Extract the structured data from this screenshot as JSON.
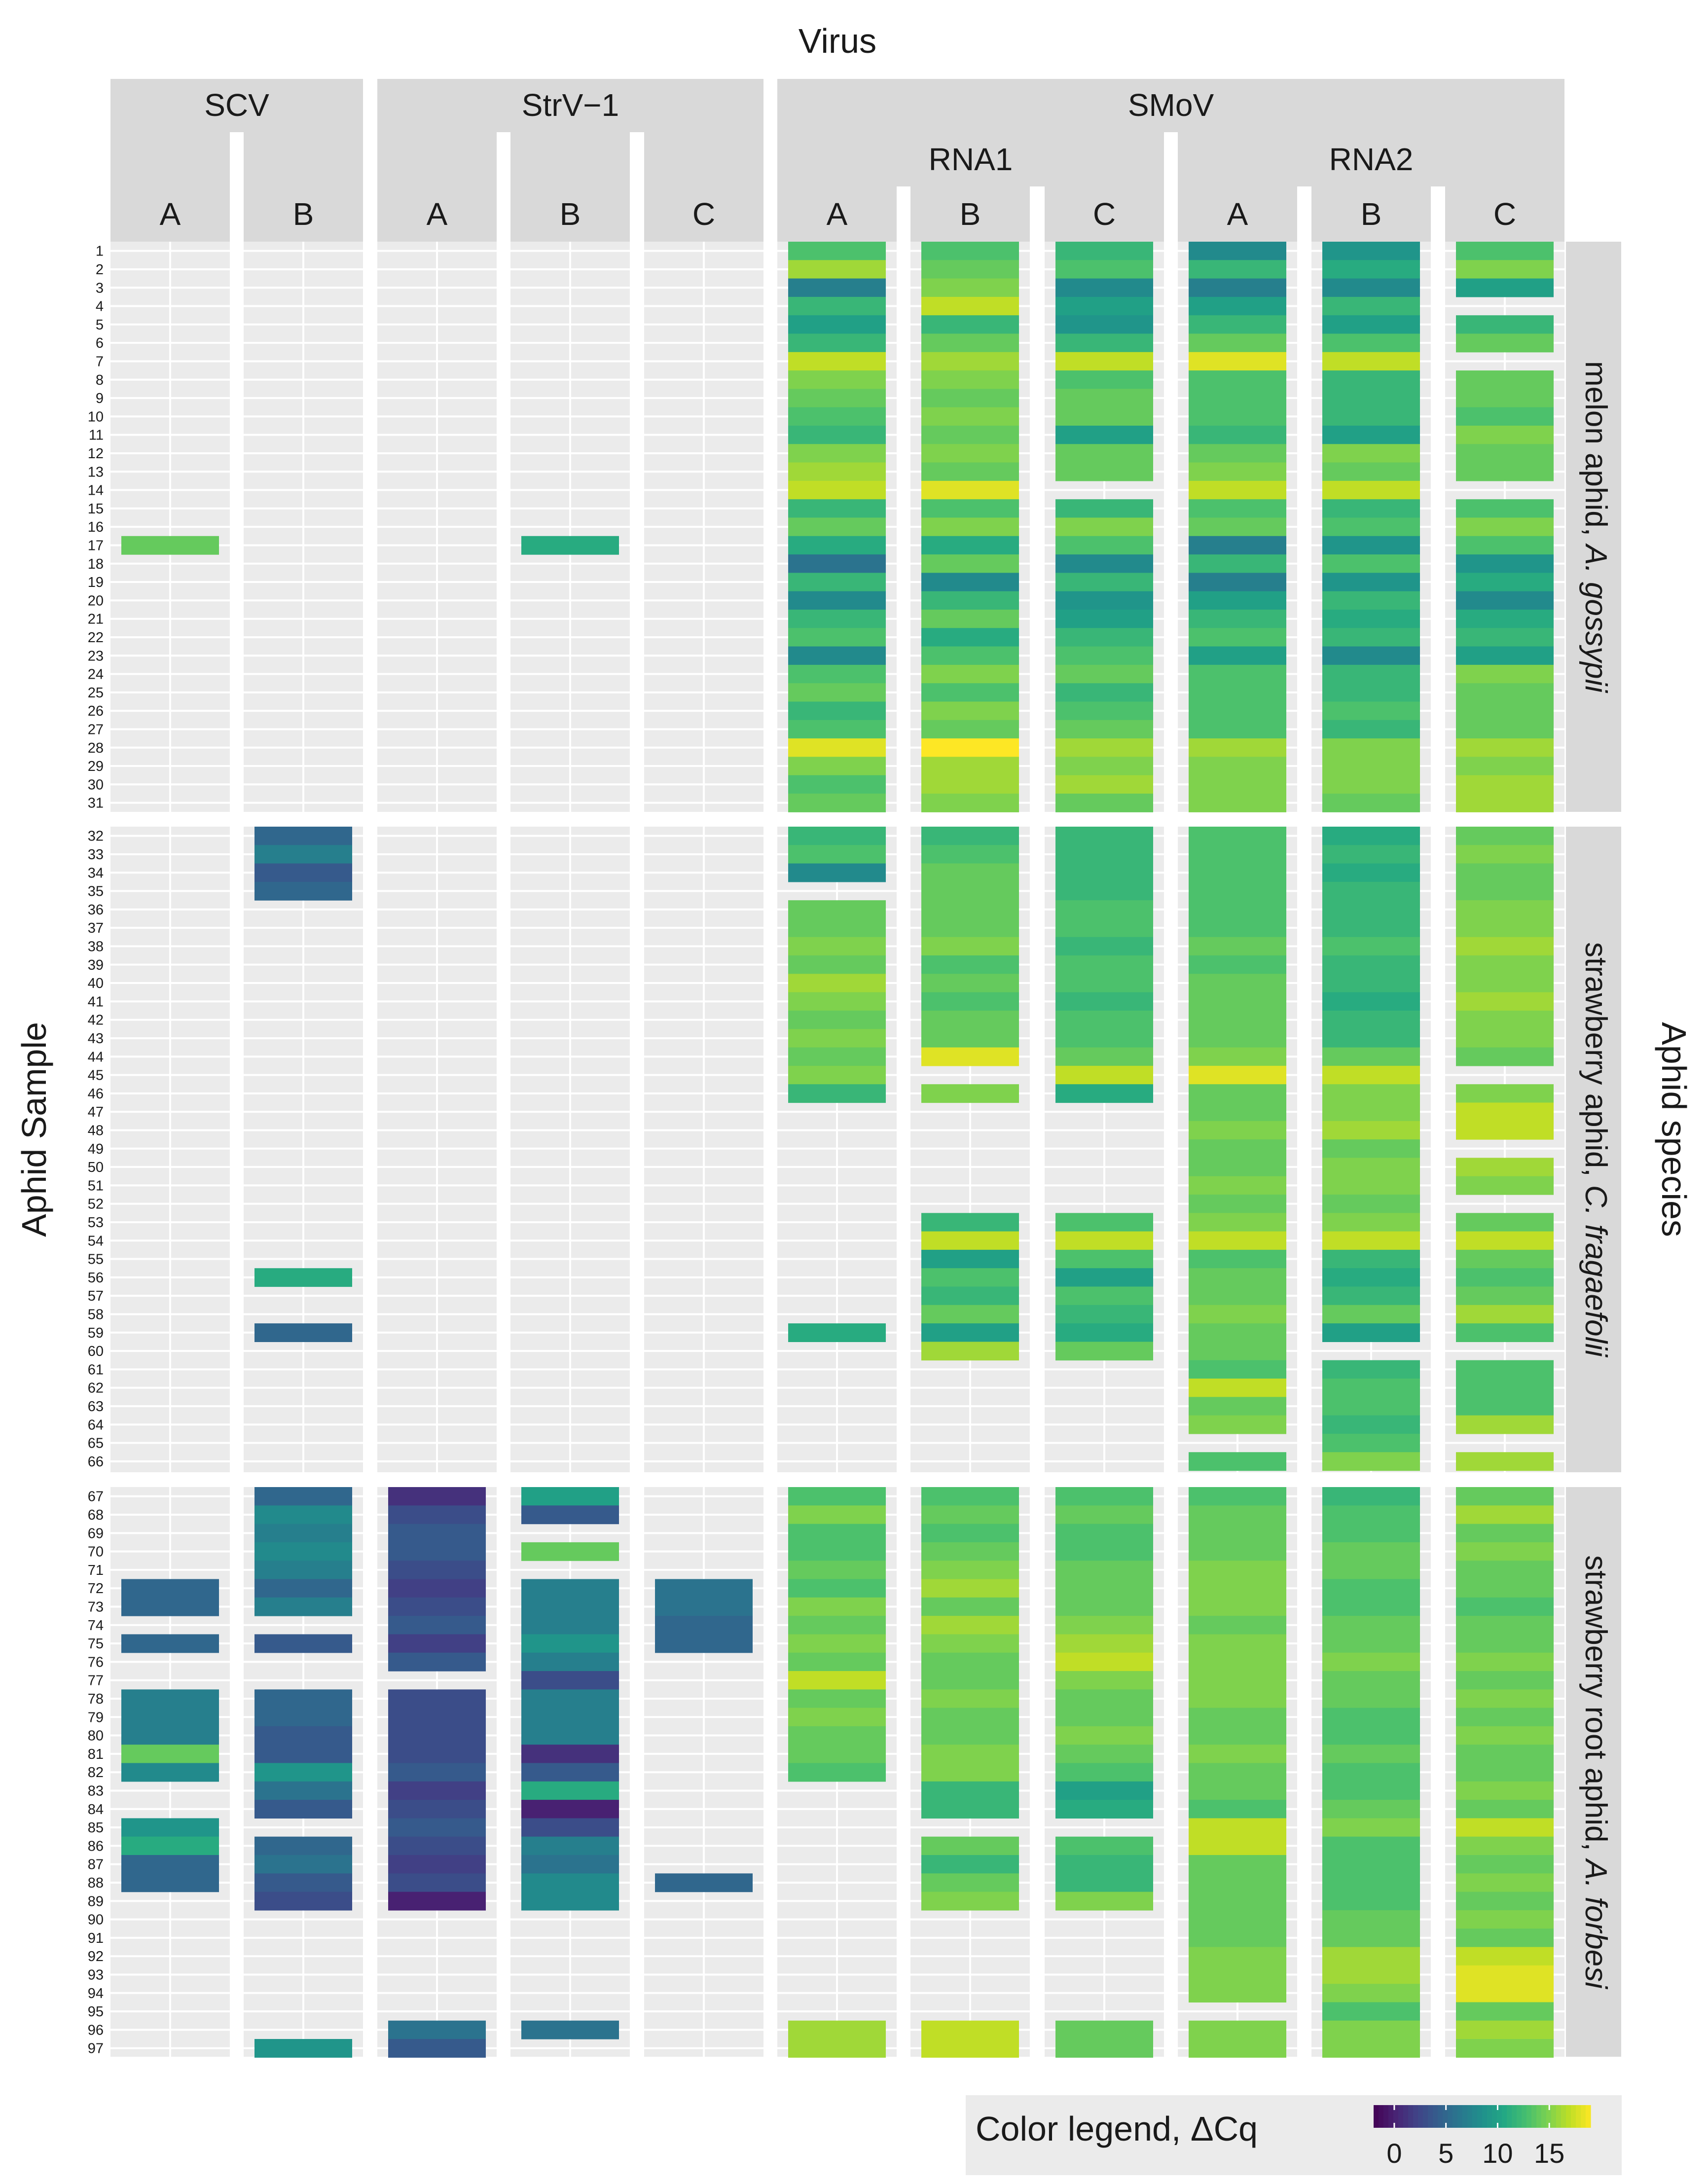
{
  "chart_data": {
    "type": "heatmap",
    "title": "Virus",
    "xlabel": "Virus",
    "ylabel": "Aphid Sample",
    "facet_label": "Aphid species",
    "legend": {
      "title": "Color legend, ΔCq",
      "ticks": [
        0,
        5,
        10,
        15
      ],
      "range": [
        -2,
        19
      ],
      "placement": "bottom-right"
    },
    "virus_groups": [
      {
        "label": "SCV",
        "columns": [
          "A",
          "B"
        ]
      },
      {
        "label": "StrV−1",
        "columns": [
          "A",
          "B",
          "C"
        ]
      },
      {
        "label": "SMoV",
        "subgroups": [
          {
            "label": "RNA1",
            "columns": [
              "A",
              "B",
              "C"
            ]
          },
          {
            "label": "RNA2",
            "columns": [
              "A",
              "B",
              "C"
            ]
          }
        ]
      }
    ],
    "columns": [
      "SCV A",
      "SCV B",
      "StrV−1 A",
      "StrV−1 B",
      "StrV−1 C",
      "SMoV RNA1 A",
      "SMoV RNA1 B",
      "SMoV RNA1 C",
      "SMoV RNA2 A",
      "SMoV RNA2 B",
      "SMoV RNA2 C"
    ],
    "species_panels": [
      {
        "label_prefix": "melon aphid, ",
        "label_italic": "A. gossypii",
        "samples": [
          1,
          31
        ]
      },
      {
        "label_prefix": "strawberry aphid, ",
        "label_italic": "C. fragaefolii",
        "samples": [
          32,
          66
        ]
      },
      {
        "label_prefix": "strawberry root aphid, ",
        "label_italic": "A. forbesi",
        "samples": [
          67,
          97
        ]
      }
    ],
    "delta_cq": {
      "SCV A": {
        "17": 14,
        "72": 5,
        "73": 5,
        "75": 5,
        "78": 7,
        "79": 7,
        "80": 7,
        "81": 14,
        "82": 8,
        "85": 9,
        "86": 11,
        "87": 5,
        "88": 5
      },
      "SCV B": {
        "32": 5,
        "33": 7,
        "34": 4,
        "35": 5,
        "56": 11,
        "59": 5,
        "67": 5,
        "68": 8,
        "69": 7,
        "70": 8,
        "71": 7,
        "72": 5,
        "73": 7,
        "75": 4,
        "78": 5,
        "79": 5,
        "80": 4,
        "81": 4,
        "82": 9,
        "83": 6,
        "84": 4,
        "86": 5,
        "87": 6,
        "88": 4,
        "89": 3,
        "97": 9
      },
      "StrV−1 A": {
        "67": 1,
        "68": 3,
        "69": 4,
        "70": 4,
        "71": 3,
        "72": 2,
        "73": 3,
        "74": 4,
        "75": 2,
        "76": 4,
        "78": 3,
        "79": 3,
        "80": 3,
        "81": 3,
        "82": 4,
        "83": 2,
        "84": 3,
        "85": 4,
        "86": 3,
        "87": 2,
        "88": 3,
        "89": 0,
        "96": 6,
        "97": 4
      },
      "StrV−1 B": {
        "17": 11,
        "67": 10,
        "68": 4,
        "70": 14,
        "72": 7,
        "73": 7,
        "74": 7,
        "75": 9,
        "76": 7,
        "77": 3,
        "78": 7,
        "79": 7,
        "80": 7,
        "81": 1,
        "82": 4,
        "83": 11,
        "84": 0,
        "85": 3,
        "86": 7,
        "87": 6,
        "88": 8,
        "89": 8,
        "96": 6
      },
      "StrV−1 C": {
        "72": 6,
        "73": 6,
        "74": 5,
        "75": 5,
        "88": 5
      },
      "SMoV RNA1 A": {
        "1": 13,
        "2": 16,
        "3": 7,
        "4": 12,
        "5": 10,
        "6": 12,
        "7": 17,
        "8": 15,
        "9": 14,
        "10": 13,
        "11": 12,
        "12": 15,
        "13": 16,
        "14": 17,
        "15": 12,
        "16": 14,
        "17": 11,
        "18": 6,
        "19": 12,
        "20": 8,
        "21": 12,
        "22": 13,
        "23": 8,
        "24": 13,
        "25": 14,
        "26": 12,
        "27": 13,
        "28": 18,
        "29": 15,
        "30": 13,
        "31": 14,
        "32": 12,
        "33": 13,
        "34": 8,
        "36": 14,
        "37": 14,
        "38": 15,
        "39": 14,
        "40": 16,
        "41": 15,
        "42": 14,
        "43": 15,
        "44": 14,
        "45": 15,
        "46": 12,
        "59": 11,
        "67": 13,
        "68": 15,
        "69": 13,
        "70": 13,
        "71": 14,
        "72": 13,
        "73": 15,
        "74": 14,
        "75": 15,
        "76": 14,
        "77": 17,
        "78": 14,
        "79": 15,
        "80": 14,
        "81": 14,
        "82": 13,
        "96": 16,
        "97": 16
      },
      "SMoV RNA1 B": {
        "1": 13,
        "2": 14,
        "3": 15,
        "4": 17,
        "5": 12,
        "6": 14,
        "7": 16,
        "8": 15,
        "9": 14,
        "10": 15,
        "11": 14,
        "12": 15,
        "13": 14,
        "14": 18,
        "15": 13,
        "16": 15,
        "17": 11,
        "18": 14,
        "19": 8,
        "20": 12,
        "21": 14,
        "22": 11,
        "23": 13,
        "24": 15,
        "25": 13,
        "26": 15,
        "27": 14,
        "28": 19,
        "29": 16,
        "30": 16,
        "31": 15,
        "32": 12,
        "33": 13,
        "34": 14,
        "35": 14,
        "36": 14,
        "37": 14,
        "38": 15,
        "39": 13,
        "40": 14,
        "41": 13,
        "42": 14,
        "43": 14,
        "44": 18,
        "46": 15,
        "53": 12,
        "54": 17,
        "55": 10,
        "56": 13,
        "57": 12,
        "58": 14,
        "59": 10,
        "60": 16,
        "67": 13,
        "68": 14,
        "69": 13,
        "70": 14,
        "71": 15,
        "72": 16,
        "73": 14,
        "74": 16,
        "75": 15,
        "76": 14,
        "77": 14,
        "78": 15,
        "79": 14,
        "80": 14,
        "81": 15,
        "82": 15,
        "83": 12,
        "84": 12,
        "86": 14,
        "87": 12,
        "88": 14,
        "89": 15,
        "96": 17,
        "97": 17
      },
      "SMoV RNA1 C": {
        "1": 12,
        "2": 13,
        "3": 8,
        "4": 10,
        "5": 9,
        "6": 12,
        "7": 17,
        "8": 13,
        "9": 14,
        "10": 14,
        "11": 10,
        "12": 14,
        "13": 14,
        "15": 12,
        "16": 15,
        "17": 13,
        "18": 8,
        "19": 12,
        "20": 9,
        "21": 10,
        "22": 12,
        "23": 13,
        "24": 14,
        "25": 12,
        "26": 13,
        "27": 14,
        "28": 16,
        "29": 15,
        "30": 16,
        "31": 14,
        "32": 12,
        "33": 12,
        "34": 12,
        "35": 12,
        "36": 13,
        "37": 13,
        "38": 12,
        "39": 13,
        "40": 13,
        "41": 12,
        "42": 13,
        "43": 13,
        "44": 14,
        "45": 17,
        "46": 11,
        "53": 13,
        "54": 17,
        "55": 13,
        "56": 10,
        "57": 13,
        "58": 12,
        "59": 11,
        "60": 14,
        "67": 13,
        "68": 14,
        "69": 13,
        "70": 13,
        "71": 14,
        "72": 14,
        "73": 14,
        "74": 15,
        "75": 16,
        "76": 17,
        "77": 15,
        "78": 14,
        "79": 14,
        "80": 15,
        "81": 14,
        "82": 13,
        "83": 10,
        "84": 11,
        "86": 13,
        "87": 12,
        "88": 12,
        "89": 15,
        "96": 14,
        "97": 14
      },
      "SMoV RNA2 A": {
        "1": 8,
        "2": 12,
        "3": 7,
        "4": 10,
        "5": 12,
        "6": 14,
        "7": 18,
        "8": 13,
        "9": 13,
        "10": 13,
        "11": 12,
        "12": 14,
        "13": 15,
        "14": 17,
        "15": 13,
        "16": 14,
        "17": 7,
        "18": 12,
        "19": 7,
        "20": 10,
        "21": 12,
        "22": 13,
        "23": 10,
        "24": 13,
        "25": 13,
        "26": 13,
        "27": 13,
        "28": 16,
        "29": 15,
        "30": 15,
        "31": 15,
        "32": 13,
        "33": 13,
        "34": 13,
        "35": 13,
        "36": 13,
        "37": 13,
        "38": 14,
        "39": 13,
        "40": 14,
        "41": 14,
        "42": 14,
        "43": 14,
        "44": 15,
        "45": 18,
        "46": 14,
        "47": 14,
        "48": 15,
        "49": 14,
        "50": 14,
        "51": 15,
        "52": 14,
        "53": 15,
        "54": 17,
        "55": 13,
        "56": 14,
        "57": 14,
        "58": 15,
        "59": 14,
        "60": 14,
        "61": 13,
        "62": 17,
        "63": 14,
        "64": 15,
        "66": 13,
        "67": 13,
        "68": 14,
        "69": 14,
        "70": 14,
        "71": 15,
        "72": 15,
        "73": 15,
        "74": 14,
        "75": 15,
        "76": 15,
        "77": 15,
        "78": 15,
        "79": 14,
        "80": 14,
        "81": 15,
        "82": 14,
        "83": 14,
        "84": 13,
        "85": 17,
        "86": 17,
        "87": 14,
        "88": 14,
        "89": 14,
        "90": 14,
        "91": 14,
        "92": 15,
        "93": 15,
        "94": 15,
        "96": 15,
        "97": 15
      },
      "SMoV RNA2 B": {
        "1": 9,
        "2": 11,
        "3": 8,
        "4": 12,
        "5": 10,
        "6": 13,
        "7": 17,
        "8": 12,
        "9": 12,
        "10": 12,
        "11": 10,
        "12": 15,
        "13": 14,
        "14": 17,
        "15": 12,
        "16": 13,
        "17": 9,
        "18": 13,
        "19": 9,
        "20": 12,
        "21": 11,
        "22": 12,
        "23": 8,
        "24": 12,
        "25": 12,
        "26": 13,
        "27": 12,
        "28": 15,
        "29": 15,
        "30": 15,
        "31": 14,
        "32": 11,
        "33": 12,
        "34": 11,
        "35": 12,
        "36": 12,
        "37": 12,
        "38": 13,
        "39": 12,
        "40": 12,
        "41": 11,
        "42": 12,
        "43": 12,
        "44": 14,
        "45": 17,
        "46": 15,
        "47": 15,
        "48": 16,
        "49": 14,
        "50": 15,
        "51": 15,
        "52": 14,
        "53": 15,
        "54": 17,
        "55": 12,
        "56": 11,
        "57": 12,
        "58": 14,
        "59": 10,
        "61": 12,
        "62": 13,
        "63": 13,
        "64": 12,
        "65": 13,
        "66": 15,
        "67": 12,
        "68": 13,
        "69": 13,
        "70": 14,
        "71": 14,
        "72": 13,
        "73": 13,
        "74": 14,
        "75": 14,
        "76": 15,
        "77": 14,
        "78": 14,
        "79": 13,
        "80": 13,
        "81": 14,
        "82": 13,
        "83": 13,
        "84": 14,
        "85": 15,
        "86": 13,
        "87": 13,
        "88": 13,
        "89": 13,
        "90": 14,
        "91": 14,
        "92": 16,
        "93": 16,
        "94": 15,
        "95": 13,
        "96": 15,
        "97": 15
      },
      "SMoV RNA2 C": {
        "1": 13,
        "2": 15,
        "3": 10,
        "5": 12,
        "6": 14,
        "8": 14,
        "9": 14,
        "10": 13,
        "11": 15,
        "12": 14,
        "13": 14,
        "15": 13,
        "16": 15,
        "17": 13,
        "18": 9,
        "19": 11,
        "20": 8,
        "21": 11,
        "22": 12,
        "23": 10,
        "24": 15,
        "25": 14,
        "26": 14,
        "27": 14,
        "28": 16,
        "29": 15,
        "30": 16,
        "31": 16,
        "32": 14,
        "33": 15,
        "34": 14,
        "35": 14,
        "36": 15,
        "37": 15,
        "38": 16,
        "39": 15,
        "40": 15,
        "41": 16,
        "42": 15,
        "43": 15,
        "44": 14,
        "46": 15,
        "47": 17,
        "48": 17,
        "50": 16,
        "51": 15,
        "53": 14,
        "54": 17,
        "55": 14,
        "56": 13,
        "57": 14,
        "58": 16,
        "59": 13,
        "61": 13,
        "62": 13,
        "63": 13,
        "64": 16,
        "66": 16,
        "67": 14,
        "68": 16,
        "69": 14,
        "70": 15,
        "71": 14,
        "72": 14,
        "73": 13,
        "74": 14,
        "75": 14,
        "76": 15,
        "77": 14,
        "78": 15,
        "79": 14,
        "80": 15,
        "81": 14,
        "82": 14,
        "83": 15,
        "84": 14,
        "85": 17,
        "86": 15,
        "87": 14,
        "88": 15,
        "89": 14,
        "90": 15,
        "91": 14,
        "92": 17,
        "93": 18,
        "94": 18,
        "95": 14,
        "96": 16,
        "97": 15
      }
    }
  }
}
